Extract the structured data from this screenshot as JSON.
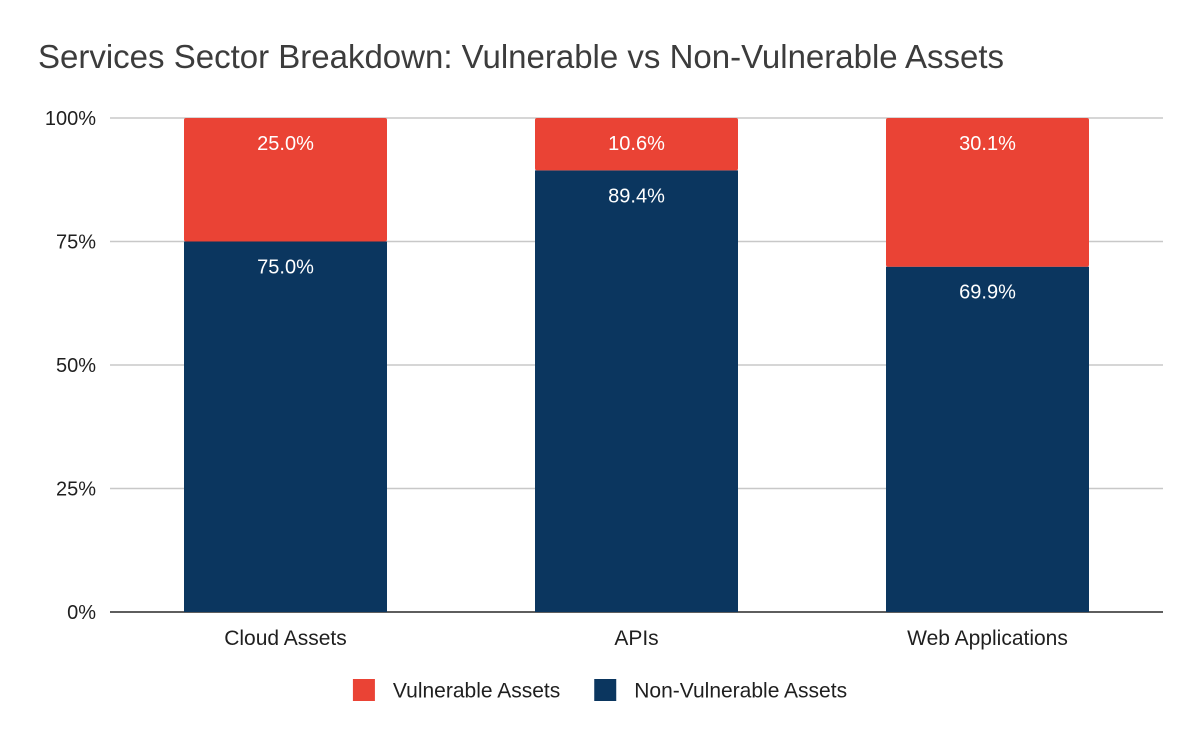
{
  "chart_data": {
    "type": "bar",
    "stacked": true,
    "title": "Services Sector Breakdown: Vulnerable vs Non-Vulnerable Assets",
    "xlabel": "",
    "ylabel": "",
    "categories": [
      "Cloud Assets",
      "APIs",
      "Web Applications"
    ],
    "series": [
      {
        "name": "Non-Vulnerable Assets",
        "color": "#0b365f",
        "values": [
          75.0,
          89.4,
          69.9
        ],
        "labels": [
          "75.0%",
          "89.4%",
          "69.9%"
        ]
      },
      {
        "name": "Vulnerable Assets",
        "color": "#ea4335",
        "values": [
          25.0,
          10.6,
          30.1
        ],
        "labels": [
          "25.0%",
          "10.6%",
          "30.1%"
        ]
      }
    ],
    "ylim": [
      0,
      100
    ],
    "yticks": [
      0,
      25,
      50,
      75,
      100
    ],
    "ytick_labels": [
      "0%",
      "25%",
      "50%",
      "75%",
      "100%"
    ],
    "grid": true,
    "legend": {
      "position": "bottom",
      "order": [
        "Vulnerable Assets",
        "Non-Vulnerable Assets"
      ]
    }
  }
}
